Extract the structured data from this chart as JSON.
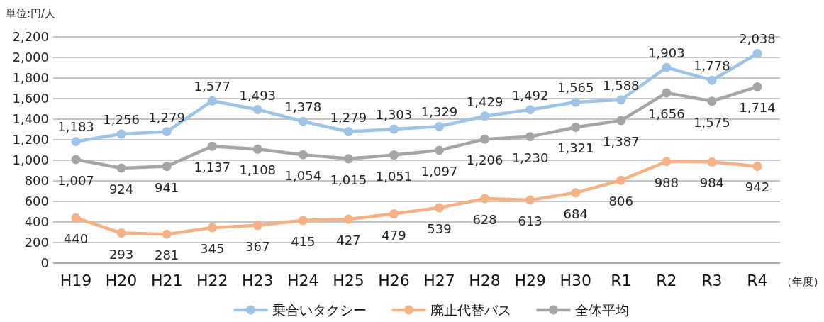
{
  "chart_data": {
    "type": "line",
    "categories": [
      "H19",
      "H20",
      "H21",
      "H22",
      "H23",
      "H24",
      "H25",
      "H26",
      "H27",
      "H28",
      "H29",
      "H30",
      "R1",
      "R2",
      "R3",
      "R4"
    ],
    "series": [
      {
        "name": "乗合いタクシー",
        "color": "#9dc3e6",
        "values": [
          1183,
          1256,
          1279,
          1577,
          1493,
          1378,
          1279,
          1303,
          1329,
          1429,
          1492,
          1565,
          1588,
          1903,
          1778,
          2038
        ],
        "value_labels": [
          "1,183",
          "1,256",
          "1,279",
          "1,577",
          "1,493",
          "1,378",
          "1,279",
          "1,303",
          "1,329",
          "1,429",
          "1,492",
          "1,565",
          "1,588",
          "1,903",
          "1,778",
          "2,038"
        ]
      },
      {
        "name": "廃止代替バス",
        "color": "#f4b183",
        "values": [
          440,
          293,
          281,
          345,
          367,
          415,
          427,
          479,
          539,
          628,
          613,
          684,
          806,
          988,
          984,
          942
        ],
        "value_labels": [
          "440",
          "293",
          "281",
          "345",
          "367",
          "415",
          "427",
          "479",
          "539",
          "628",
          "613",
          "684",
          "806",
          "988",
          "984",
          "942"
        ]
      },
      {
        "name": "全体平均",
        "color": "#a5a5a5",
        "values": [
          1007,
          924,
          941,
          1137,
          1108,
          1054,
          1015,
          1051,
          1097,
          1206,
          1230,
          1321,
          1387,
          1656,
          1575,
          1714
        ],
        "value_labels": [
          "1,007",
          "924",
          "941",
          "1,137",
          "1,108",
          "1,054",
          "1,015",
          "1,051",
          "1,097",
          "1,206",
          "1,230",
          "1,321",
          "1,387",
          "1,656",
          "1,575",
          "1,714"
        ]
      }
    ],
    "ylim": [
      0,
      2200
    ],
    "yticks": [
      0,
      200,
      400,
      600,
      800,
      {
        "value": 1000,
        "label": "1,000"
      },
      {
        "value": 1200,
        "label": "1,200"
      },
      {
        "value": 1400,
        "label": "1,400"
      },
      {
        "value": 1600,
        "label": "1,600"
      },
      {
        "value": 1800,
        "label": "1,800"
      },
      {
        "value": 2000,
        "label": "2,000"
      },
      {
        "value": 2200,
        "label": "2,200"
      }
    ],
    "grid": "y",
    "legend": "bottom",
    "marker": "circle",
    "line_style": "solid",
    "annotations": [
      "単位:円/人",
      "（年度）"
    ]
  }
}
